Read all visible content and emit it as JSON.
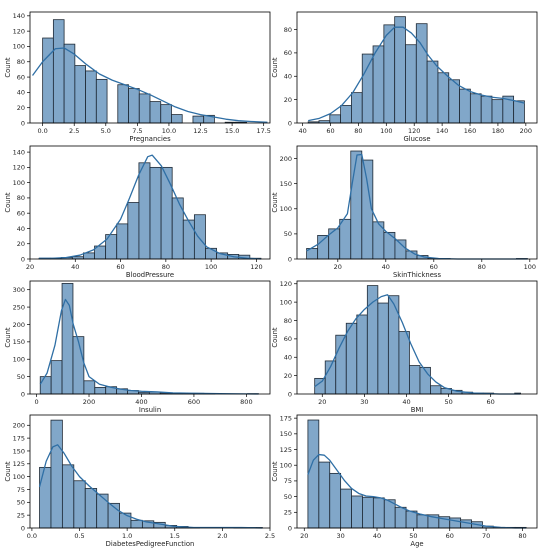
{
  "style": {
    "bar_fill": "#6b98c0",
    "bar_edge": "#1f2a36",
    "kde_line": "#2f6fa5",
    "axis_color": "#000000"
  },
  "chart_data": [
    {
      "type": "bar",
      "xlabel": "Pregnancies",
      "ylabel": "Count",
      "xlim": [
        -1,
        18
      ],
      "ylim": [
        0,
        145
      ],
      "xticks": [
        0.0,
        2.5,
        5.0,
        7.5,
        10.0,
        12.5,
        15.0,
        17.5
      ],
      "xtick_labels": [
        "0.0",
        "2.5",
        "5.0",
        "7.5",
        "10.0",
        "12.5",
        "15.0",
        "17.5"
      ],
      "yticks": [
        0,
        20,
        40,
        60,
        80,
        100,
        120,
        140
      ],
      "bin_edges": [
        0,
        0.85,
        1.7,
        2.55,
        3.4,
        4.25,
        5.1,
        5.95,
        6.8,
        7.65,
        8.5,
        9.35,
        10.2,
        11.05,
        11.9,
        12.75,
        13.6,
        14.45,
        15.3,
        16.15,
        17
      ],
      "counts": [
        111,
        135,
        103,
        75,
        68,
        57,
        0,
        50,
        45,
        38,
        28,
        24,
        11,
        0,
        9,
        10,
        0,
        1,
        1,
        0
      ],
      "kde": [
        [
          -0.8,
          62
        ],
        [
          0,
          80
        ],
        [
          1,
          97
        ],
        [
          1.7,
          98
        ],
        [
          2.5,
          90
        ],
        [
          3.5,
          76
        ],
        [
          4.5,
          64
        ],
        [
          5.5,
          56
        ],
        [
          6.5,
          50
        ],
        [
          7.5,
          44
        ],
        [
          8.5,
          37
        ],
        [
          9.5,
          29
        ],
        [
          10.5,
          21
        ],
        [
          11.5,
          15
        ],
        [
          12.5,
          11
        ],
        [
          13.5,
          8
        ],
        [
          14.5,
          5
        ],
        [
          15.5,
          3
        ],
        [
          16.5,
          2
        ],
        [
          17.8,
          1
        ]
      ]
    },
    {
      "type": "bar",
      "xlabel": "Glucose",
      "ylabel": "Count",
      "xlim": [
        36,
        208
      ],
      "ylim": [
        0,
        95
      ],
      "xticks": [
        40,
        60,
        80,
        100,
        120,
        140,
        160,
        180,
        200
      ],
      "xtick_labels": [
        "40",
        "60",
        "80",
        "100",
        "120",
        "140",
        "160",
        "180",
        "200"
      ],
      "yticks": [
        0,
        20,
        40,
        60,
        80
      ],
      "bin_edges": [
        44,
        51.75,
        59.5,
        67.25,
        75,
        82.75,
        90.5,
        98.25,
        106,
        113.75,
        121.5,
        129.25,
        137,
        144.75,
        152.5,
        160.25,
        168,
        175.75,
        183.5,
        191.25,
        199
      ],
      "counts": [
        1,
        2,
        7,
        15,
        26,
        59,
        66,
        84,
        91,
        67,
        85,
        53,
        43,
        37,
        29,
        25,
        23,
        20,
        23,
        19
      ],
      "kde": [
        [
          44,
          2
        ],
        [
          52,
          4
        ],
        [
          60,
          8
        ],
        [
          68,
          15
        ],
        [
          76,
          26
        ],
        [
          84,
          42
        ],
        [
          92,
          60
        ],
        [
          100,
          75
        ],
        [
          106,
          82
        ],
        [
          112,
          82
        ],
        [
          118,
          77
        ],
        [
          124,
          69
        ],
        [
          130,
          58
        ],
        [
          136,
          49
        ],
        [
          144,
          40
        ],
        [
          152,
          32
        ],
        [
          160,
          27
        ],
        [
          168,
          24
        ],
        [
          176,
          22
        ],
        [
          184,
          21
        ],
        [
          192,
          19
        ],
        [
          199,
          17
        ]
      ]
    },
    {
      "type": "bar",
      "xlabel": "BloodPressure",
      "ylabel": "Count",
      "xlim": [
        20,
        126
      ],
      "ylim": [
        0,
        148
      ],
      "xticks": [
        20,
        40,
        60,
        80,
        100,
        120
      ],
      "xtick_labels": [
        "20",
        "40",
        "60",
        "80",
        "100",
        "120"
      ],
      "yticks": [
        0,
        20,
        40,
        60,
        80,
        100,
        120,
        140
      ],
      "bin_edges": [
        24,
        28.9,
        33.8,
        38.7,
        43.6,
        48.5,
        53.4,
        58.3,
        63.2,
        68.1,
        73,
        77.9,
        82.8,
        87.7,
        92.6,
        97.5,
        102.4,
        107.3,
        112.2,
        117.1,
        122
      ],
      "counts": [
        1,
        1,
        2,
        3,
        8,
        17,
        32,
        46,
        74,
        126,
        120,
        120,
        80,
        51,
        58,
        14,
        8,
        6,
        5,
        1
      ],
      "kde": [
        [
          24,
          1
        ],
        [
          30,
          1
        ],
        [
          36,
          2
        ],
        [
          42,
          5
        ],
        [
          48,
          12
        ],
        [
          54,
          26
        ],
        [
          60,
          52
        ],
        [
          64,
          80
        ],
        [
          68,
          110
        ],
        [
          72,
          134
        ],
        [
          74,
          136
        ],
        [
          78,
          122
        ],
        [
          82,
          98
        ],
        [
          86,
          72
        ],
        [
          90,
          50
        ],
        [
          94,
          30
        ],
        [
          98,
          16
        ],
        [
          104,
          7
        ],
        [
          110,
          3
        ],
        [
          116,
          1
        ],
        [
          122,
          0
        ]
      ]
    },
    {
      "type": "bar",
      "xlabel": "SkinThickness",
      "ylabel": "Count",
      "xlim": [
        3,
        103
      ],
      "ylim": [
        0,
        225
      ],
      "xticks": [
        20,
        40,
        60,
        80,
        100
      ],
      "xtick_labels": [
        "20",
        "40",
        "60",
        "80",
        "100"
      ],
      "yticks": [
        0,
        50,
        100,
        150,
        200
      ],
      "bin_edges": [
        7,
        11.6,
        16.2,
        20.8,
        25.4,
        30,
        34.6,
        39.2,
        43.8,
        48.4,
        53,
        57.6,
        62.2,
        66.8,
        71.4,
        76,
        80.6,
        85.2,
        89.8,
        94.4,
        99
      ],
      "counts": [
        21,
        47,
        60,
        79,
        215,
        197,
        74,
        53,
        38,
        16,
        7,
        1,
        1,
        0,
        0,
        0,
        0,
        0,
        0,
        1
      ],
      "kde": [
        [
          7,
          16
        ],
        [
          12,
          30
        ],
        [
          16,
          47
        ],
        [
          20,
          62
        ],
        [
          24,
          90
        ],
        [
          26,
          150
        ],
        [
          28,
          207
        ],
        [
          30,
          208
        ],
        [
          32,
          160
        ],
        [
          34,
          100
        ],
        [
          37,
          70
        ],
        [
          40,
          55
        ],
        [
          44,
          40
        ],
        [
          48,
          22
        ],
        [
          52,
          10
        ],
        [
          56,
          4
        ],
        [
          62,
          1
        ],
        [
          70,
          0
        ],
        [
          99,
          0
        ]
      ]
    },
    {
      "type": "bar",
      "xlabel": "Insulin",
      "ylabel": "Count",
      "xlim": [
        -25,
        890
      ],
      "ylim": [
        0,
        325
      ],
      "xticks": [
        0,
        200,
        400,
        600,
        800
      ],
      "xtick_labels": [
        "0",
        "200",
        "400",
        "600",
        "800"
      ],
      "yticks": [
        0,
        50,
        100,
        150,
        200,
        250,
        300
      ],
      "bin_edges": [
        14,
        55.6,
        97.2,
        138.8,
        180.4,
        222,
        263.6,
        305.2,
        346.8,
        388.4,
        430,
        471.6,
        513.2,
        554.8,
        596.4,
        638,
        679.6,
        721.2,
        762.8,
        804.4,
        846
      ],
      "counts": [
        50,
        96,
        318,
        165,
        38,
        19,
        21,
        15,
        10,
        5,
        6,
        3,
        1,
        1,
        2,
        1,
        0,
        0,
        0,
        1
      ],
      "kde": [
        [
          14,
          28
        ],
        [
          40,
          60
        ],
        [
          70,
          140
        ],
        [
          95,
          240
        ],
        [
          110,
          272
        ],
        [
          125,
          255
        ],
        [
          140,
          200
        ],
        [
          160,
          150
        ],
        [
          180,
          90
        ],
        [
          200,
          50
        ],
        [
          240,
          28
        ],
        [
          280,
          20
        ],
        [
          320,
          14
        ],
        [
          360,
          10
        ],
        [
          400,
          8
        ],
        [
          460,
          6
        ],
        [
          520,
          3
        ],
        [
          600,
          2
        ],
        [
          700,
          1
        ],
        [
          846,
          0
        ]
      ]
    },
    {
      "type": "bar",
      "xlabel": "BMI",
      "ylabel": "Count",
      "xlim": [
        14,
        71
      ],
      "ylim": [
        0,
        123
      ],
      "xticks": [
        20,
        30,
        40,
        50,
        60
      ],
      "xtick_labels": [
        "20",
        "30",
        "40",
        "50",
        "60"
      ],
      "yticks": [
        0,
        20,
        40,
        60,
        80,
        100,
        120
      ],
      "bin_edges": [
        18.2,
        20.7,
        23.2,
        25.7,
        28.2,
        30.7,
        33.2,
        35.7,
        38.2,
        40.7,
        43.2,
        45.7,
        48.2,
        50.7,
        53.2,
        55.7,
        58.2,
        60.7,
        63.2,
        65.7,
        67.1
      ],
      "counts": [
        17,
        36,
        64,
        77,
        86,
        118,
        99,
        107,
        68,
        31,
        29,
        9,
        6,
        4,
        2,
        1,
        1,
        0,
        0,
        1
      ],
      "kde": [
        [
          18.2,
          8
        ],
        [
          20,
          14
        ],
        [
          22,
          30
        ],
        [
          24,
          50
        ],
        [
          26,
          68
        ],
        [
          28,
          82
        ],
        [
          30,
          92
        ],
        [
          32,
          100
        ],
        [
          34,
          106
        ],
        [
          35.5,
          108
        ],
        [
          37,
          98
        ],
        [
          39,
          78
        ],
        [
          41,
          55
        ],
        [
          43,
          35
        ],
        [
          45,
          22
        ],
        [
          47,
          13
        ],
        [
          49,
          7
        ],
        [
          52,
          3
        ],
        [
          56,
          1
        ],
        [
          62,
          0
        ],
        [
          67,
          0
        ]
      ]
    },
    {
      "type": "bar",
      "xlabel": "DiabetesPedigreeFunction",
      "ylabel": "Count",
      "xlim": [
        -0.02,
        2.5
      ],
      "ylim": [
        0,
        220
      ],
      "xticks": [
        0.0,
        0.5,
        1.0,
        1.5,
        2.0,
        2.5
      ],
      "xtick_labels": [
        "0.0",
        "0.5",
        "1.0",
        "1.5",
        "2.0",
        "2.5"
      ],
      "yticks": [
        0,
        25,
        50,
        75,
        100,
        125,
        150,
        175,
        200
      ],
      "bin_edges": [
        0.08,
        0.2,
        0.32,
        0.44,
        0.56,
        0.68,
        0.8,
        0.92,
        1.04,
        1.16,
        1.28,
        1.4,
        1.52,
        1.64,
        1.76,
        1.88,
        2.0,
        2.12,
        2.24,
        2.36,
        2.42
      ],
      "counts": [
        118,
        210,
        123,
        92,
        77,
        66,
        48,
        29,
        15,
        14,
        11,
        5,
        3,
        1,
        0,
        0,
        0,
        1,
        1,
        1
      ],
      "kde": [
        [
          0.08,
          80
        ],
        [
          0.15,
          130
        ],
        [
          0.22,
          158
        ],
        [
          0.27,
          162
        ],
        [
          0.34,
          145
        ],
        [
          0.42,
          120
        ],
        [
          0.5,
          100
        ],
        [
          0.6,
          82
        ],
        [
          0.7,
          66
        ],
        [
          0.8,
          50
        ],
        [
          0.9,
          35
        ],
        [
          1.0,
          24
        ],
        [
          1.1,
          17
        ],
        [
          1.2,
          12
        ],
        [
          1.3,
          9
        ],
        [
          1.4,
          6
        ],
        [
          1.5,
          3
        ],
        [
          1.7,
          1
        ],
        [
          2.0,
          1
        ],
        [
          2.2,
          1
        ],
        [
          2.42,
          0
        ]
      ]
    },
    {
      "type": "bar",
      "xlabel": "Age",
      "ylabel": "Count",
      "xlim": [
        18,
        84
      ],
      "ylim": [
        0,
        180
      ],
      "xticks": [
        20,
        30,
        40,
        50,
        60,
        70,
        80
      ],
      "xtick_labels": [
        "20",
        "30",
        "40",
        "50",
        "60",
        "70",
        "80"
      ],
      "yticks": [
        0,
        25,
        50,
        75,
        100,
        125,
        150,
        175
      ],
      "bin_edges": [
        21,
        24,
        27,
        30,
        33,
        36,
        39,
        42,
        45,
        48,
        51,
        54,
        57,
        60,
        63,
        66,
        69,
        72,
        75,
        78,
        81
      ],
      "counts": [
        172,
        105,
        87,
        62,
        51,
        49,
        48,
        45,
        33,
        27,
        21,
        21,
        18,
        16,
        13,
        10,
        3,
        1,
        1,
        1
      ],
      "kde": [
        [
          21,
          85
        ],
        [
          22.5,
          108
        ],
        [
          24,
          117
        ],
        [
          25.5,
          116
        ],
        [
          27,
          108
        ],
        [
          29,
          92
        ],
        [
          31,
          76
        ],
        [
          33,
          63
        ],
        [
          35,
          55
        ],
        [
          37,
          51
        ],
        [
          39,
          50
        ],
        [
          41,
          48
        ],
        [
          43,
          44
        ],
        [
          45,
          38
        ],
        [
          47,
          32
        ],
        [
          49,
          27
        ],
        [
          52,
          22
        ],
        [
          55,
          18
        ],
        [
          58,
          15
        ],
        [
          61,
          12
        ],
        [
          64,
          9
        ],
        [
          67,
          6
        ],
        [
          70,
          3
        ],
        [
          74,
          1
        ],
        [
          78,
          0
        ],
        [
          81,
          0
        ]
      ]
    }
  ]
}
